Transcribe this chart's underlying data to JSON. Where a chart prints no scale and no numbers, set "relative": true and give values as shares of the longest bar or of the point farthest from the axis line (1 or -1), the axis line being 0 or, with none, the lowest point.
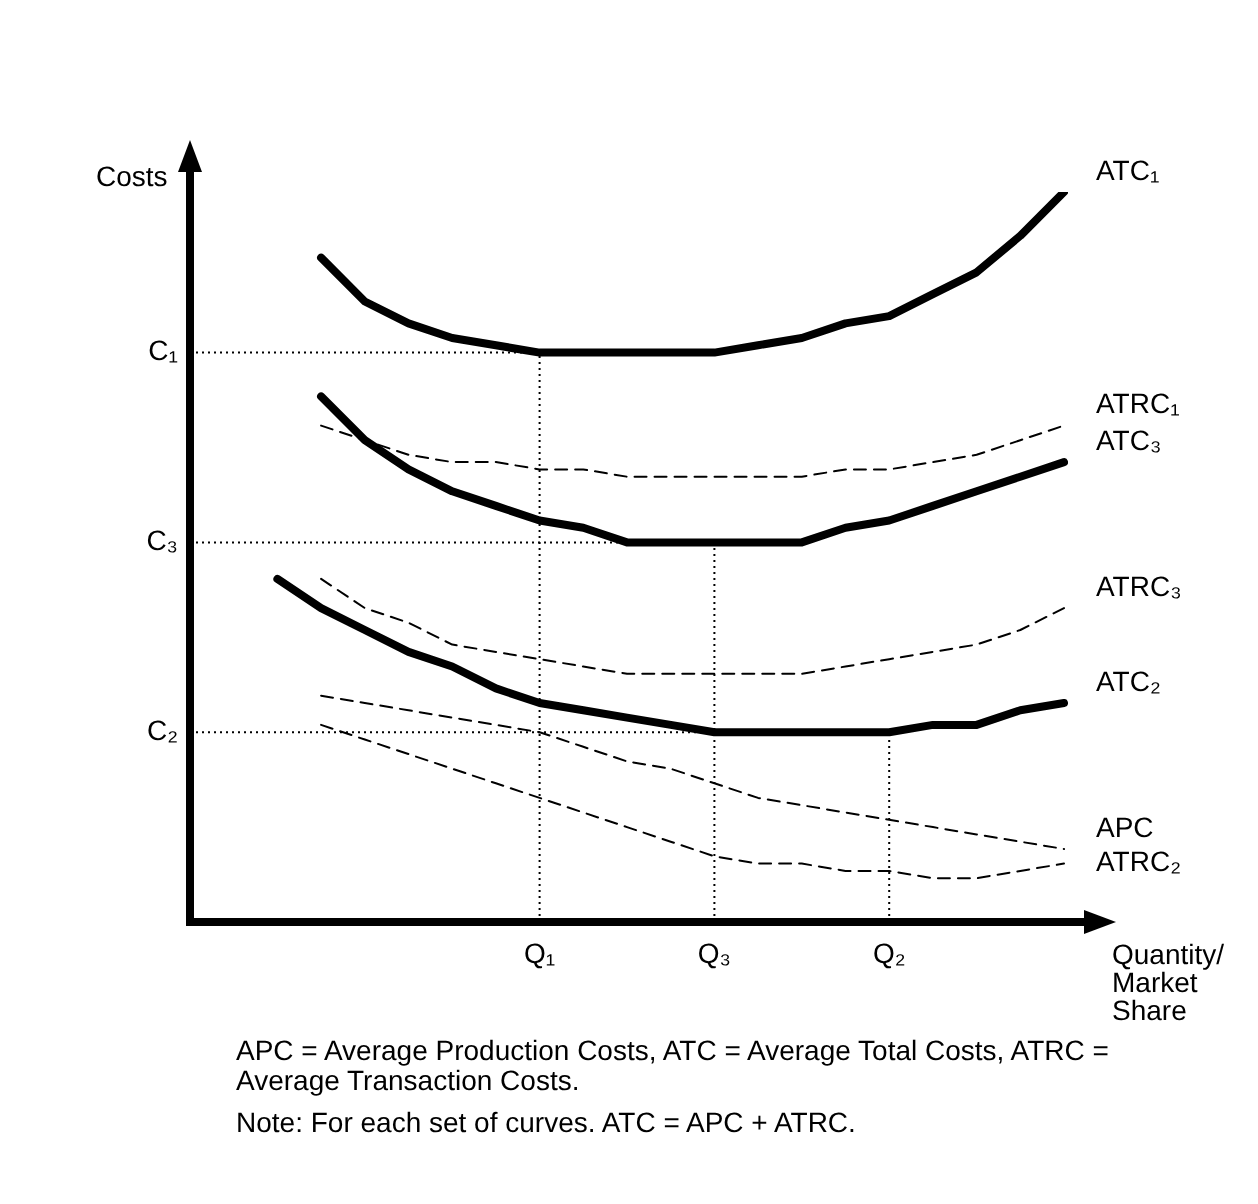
{
  "chart_data": {
    "type": "line",
    "relative": true,
    "ylabel": "Costs",
    "xlabel": "Quantity/ Market Share",
    "categories": [
      null,
      null,
      null,
      null,
      null,
      null,
      null,
      null,
      "Q₁",
      null,
      null,
      null,
      "Q₃",
      null,
      null,
      null,
      "Q₂",
      null,
      null,
      null,
      null
    ],
    "legend": false,
    "marker": "none",
    "ref_lines": [
      {
        "axis": "y",
        "value": 0.78,
        "label": "C₁",
        "line_style": "dotted"
      },
      {
        "axis": "y",
        "value": 0.52,
        "label": "C₃",
        "line_style": "dotted"
      },
      {
        "axis": "y",
        "value": 0.26,
        "label": "C₂",
        "line_style": "dotted"
      },
      {
        "axis": "x",
        "value": "Q₁",
        "line_style": "dotted"
      },
      {
        "axis": "x",
        "value": "Q₃",
        "line_style": "dotted"
      },
      {
        "axis": "x",
        "value": "Q₂",
        "line_style": "dotted"
      }
    ],
    "series": [
      {
        "name": "ATC₁",
        "color": "#000000",
        "line_style": "solid",
        "values": [
          null,
          null,
          null,
          0.91,
          0.85,
          0.82,
          0.8,
          0.79,
          0.78,
          0.78,
          0.78,
          0.78,
          0.78,
          0.79,
          0.8,
          0.82,
          0.83,
          0.86,
          0.89,
          0.94,
          1.0
        ]
      },
      {
        "name": "ATRC₁",
        "color": "#000000",
        "line_style": "dashed",
        "values": [
          null,
          null,
          null,
          0.68,
          0.66,
          0.64,
          0.63,
          0.63,
          0.62,
          0.62,
          0.61,
          0.61,
          0.61,
          0.61,
          0.61,
          0.62,
          0.62,
          0.63,
          0.64,
          0.66,
          0.68
        ]
      },
      {
        "name": "ATC₃",
        "color": "#000000",
        "line_style": "solid",
        "values": [
          null,
          null,
          null,
          0.72,
          0.66,
          0.62,
          0.59,
          0.57,
          0.55,
          0.54,
          0.52,
          0.52,
          0.52,
          0.52,
          0.52,
          0.54,
          0.55,
          0.57,
          0.59,
          0.61,
          0.63
        ]
      },
      {
        "name": "ATRC₃",
        "color": "#000000",
        "line_style": "dashed",
        "values": [
          null,
          null,
          null,
          0.47,
          0.43,
          0.41,
          0.38,
          0.37,
          0.36,
          0.35,
          0.34,
          0.34,
          0.34,
          0.34,
          0.34,
          0.35,
          0.36,
          0.37,
          0.38,
          0.4,
          0.43
        ]
      },
      {
        "name": "ATC₂",
        "color": "#000000",
        "line_style": "solid",
        "values": [
          null,
          null,
          0.47,
          0.43,
          0.4,
          0.37,
          0.35,
          0.32,
          0.3,
          0.29,
          0.28,
          0.27,
          0.26,
          0.26,
          0.26,
          0.26,
          0.26,
          0.27,
          0.27,
          0.29,
          0.3
        ]
      },
      {
        "name": "APC",
        "color": "#000000",
        "line_style": "dashed",
        "values": [
          null,
          null,
          null,
          0.31,
          0.3,
          0.29,
          0.28,
          0.27,
          0.26,
          0.24,
          0.22,
          0.21,
          0.19,
          0.17,
          0.16,
          0.15,
          0.14,
          0.13,
          0.12,
          0.11,
          0.1
        ]
      },
      {
        "name": "ATRC₂",
        "color": "#000000",
        "line_style": "dashed",
        "values": [
          null,
          null,
          null,
          0.27,
          0.25,
          0.23,
          0.21,
          0.19,
          0.17,
          0.15,
          0.13,
          0.11,
          0.09,
          0.08,
          0.08,
          0.07,
          0.07,
          0.06,
          0.06,
          0.07,
          0.08
        ]
      }
    ],
    "annotations": [
      "APC = Average Production Costs, ATC = Average Total Costs, ATRC = Average Transaction Costs.",
      "Note: For each set of curves. ATC = APC + ATRC."
    ]
  }
}
